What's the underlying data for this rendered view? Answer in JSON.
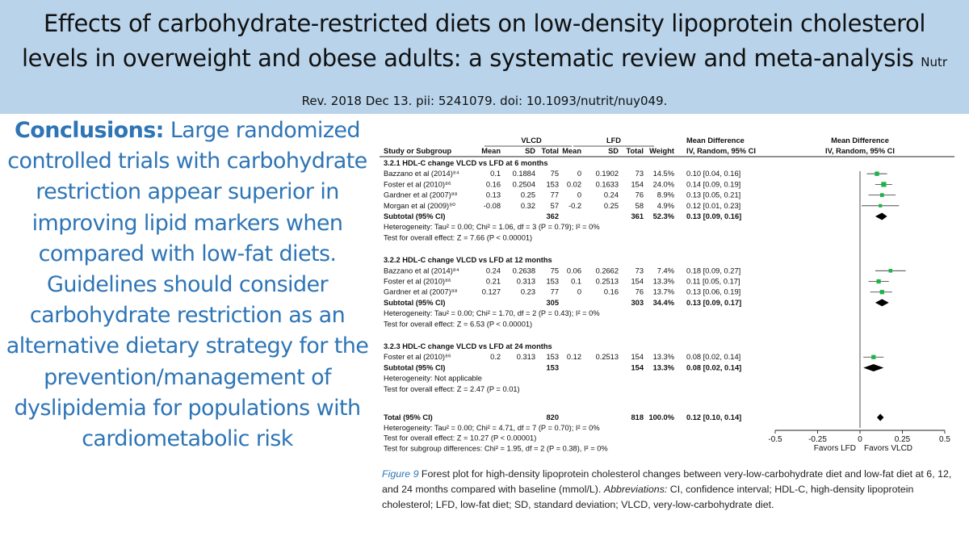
{
  "header": {
    "title": "Effects of carbohydrate-restricted diets on low-density lipoprotein cholesterol levels in overweight and obese adults: a systematic review and meta-analysis",
    "citation": "Nutr Rev. 2018 Dec 13. pii: 5241079. doi: 10.1093/nutrit/nuy049."
  },
  "conclusion": {
    "label": "Conclusions:",
    "text": "Large randomized controlled trials with carbohydrate restriction appear superior in improving lipid markers when compared with low-fat diets. Guidelines should consider carbohydrate restriction as an alternative dietary strategy for the prevention/management of dyslipidemia for populations with cardiometabolic risk"
  },
  "caption": {
    "label": "Figure 9",
    "text": "Forest plot for high-density lipoprotein cholesterol changes between very-low-carbohydrate diet and low-fat diet at 6, 12, and 24 months compared with baseline (mmol/L).",
    "abbr_label": "Abbreviations:",
    "abbr_text": "CI, confidence interval; HDL-C, high-density lipoprotein cholesterol; LFD, low-fat diet; SD, standard deviation; VLCD, very-low-carbohydrate diet."
  },
  "chart_data": {
    "type": "forest",
    "group_headers": [
      "VLCD",
      "LFD",
      "Mean Difference",
      "Mean Difference"
    ],
    "columns": [
      "Study or Subgroup",
      "Mean",
      "SD",
      "Total",
      "Mean",
      "SD",
      "Total",
      "Weight",
      "IV, Random, 95% CI",
      "IV, Random, 95% CI"
    ],
    "subgroups": [
      {
        "name": "3.2.1 HDL-C change VLCD vs LFD at 6 months",
        "studies": [
          {
            "study": "Bazzano et al (2014)⁸⁴",
            "vlcd_mean": "0.1",
            "vlcd_sd": "0.1884",
            "vlcd_total": "75",
            "lfd_mean": "0",
            "lfd_sd": "0.1902",
            "lfd_total": "73",
            "weight": "14.5%",
            "ci_text": "0.10 [0.04, 0.16]",
            "md": 0.1,
            "lo": 0.04,
            "hi": 0.16,
            "w": 14.5
          },
          {
            "study": "Foster et al (2010)⁸⁶",
            "vlcd_mean": "0.16",
            "vlcd_sd": "0.2504",
            "vlcd_total": "153",
            "lfd_mean": "0.02",
            "lfd_sd": "0.1633",
            "lfd_total": "154",
            "weight": "24.0%",
            "ci_text": "0.14 [0.09, 0.19]",
            "md": 0.14,
            "lo": 0.09,
            "hi": 0.19,
            "w": 24.0
          },
          {
            "study": "Gardner et al (2007)⁸⁸",
            "vlcd_mean": "0.13",
            "vlcd_sd": "0.25",
            "vlcd_total": "77",
            "lfd_mean": "0",
            "lfd_sd": "0.24",
            "lfd_total": "76",
            "weight": "8.9%",
            "ci_text": "0.13 [0.05, 0.21]",
            "md": 0.13,
            "lo": 0.05,
            "hi": 0.21,
            "w": 8.9
          },
          {
            "study": "Morgan et al (2009)⁹⁰",
            "vlcd_mean": "-0.08",
            "vlcd_sd": "0.32",
            "vlcd_total": "57",
            "lfd_mean": "-0.2",
            "lfd_sd": "0.25",
            "lfd_total": "58",
            "weight": "4.9%",
            "ci_text": "0.12 [0.01, 0.23]",
            "md": 0.12,
            "lo": 0.01,
            "hi": 0.23,
            "w": 4.9
          }
        ],
        "subtotal": {
          "label": "Subtotal (95% CI)",
          "vlcd_total": "362",
          "lfd_total": "361",
          "weight": "52.3%",
          "ci_text": "0.13 [0.09, 0.16]",
          "md": 0.13,
          "lo": 0.09,
          "hi": 0.16
        },
        "heterogeneity": "Heterogeneity: Tau² = 0.00; Chi² = 1.06, df = 3 (P = 0.79); I² = 0%",
        "overall_effect": "Test for overall effect: Z = 7.66 (P < 0.00001)"
      },
      {
        "name": "3.2.2 HDL-C change VLCD vs LFD at 12 months",
        "studies": [
          {
            "study": "Bazzano et al (2014)⁸⁴",
            "vlcd_mean": "0.24",
            "vlcd_sd": "0.2638",
            "vlcd_total": "75",
            "lfd_mean": "0.06",
            "lfd_sd": "0.2662",
            "lfd_total": "73",
            "weight": "7.4%",
            "ci_text": "0.18 [0.09, 0.27]",
            "md": 0.18,
            "lo": 0.09,
            "hi": 0.27,
            "w": 7.4
          },
          {
            "study": "Foster et al (2010)⁸⁶",
            "vlcd_mean": "0.21",
            "vlcd_sd": "0.313",
            "vlcd_total": "153",
            "lfd_mean": "0.1",
            "lfd_sd": "0.2513",
            "lfd_total": "154",
            "weight": "13.3%",
            "ci_text": "0.11 [0.05, 0.17]",
            "md": 0.11,
            "lo": 0.05,
            "hi": 0.17,
            "w": 13.3
          },
          {
            "study": "Gardner et al (2007)⁸⁸",
            "vlcd_mean": "0.127",
            "vlcd_sd": "0.23",
            "vlcd_total": "77",
            "lfd_mean": "0",
            "lfd_sd": "0.16",
            "lfd_total": "76",
            "weight": "13.7%",
            "ci_text": "0.13 [0.06, 0.19]",
            "md": 0.13,
            "lo": 0.06,
            "hi": 0.19,
            "w": 13.7
          }
        ],
        "subtotal": {
          "label": "Subtotal (95% CI)",
          "vlcd_total": "305",
          "lfd_total": "303",
          "weight": "34.4%",
          "ci_text": "0.13 [0.09, 0.17]",
          "md": 0.13,
          "lo": 0.09,
          "hi": 0.17
        },
        "heterogeneity": "Heterogeneity: Tau² = 0.00; Chi² = 1.70, df = 2 (P = 0.43); I² = 0%",
        "overall_effect": "Test for overall effect: Z = 6.53 (P < 0.00001)"
      },
      {
        "name": "3.2.3 HDL-C change VLCD vs LFD at 24 months",
        "studies": [
          {
            "study": "Foster et al (2010)⁸⁶",
            "vlcd_mean": "0.2",
            "vlcd_sd": "0.313",
            "vlcd_total": "153",
            "lfd_mean": "0.12",
            "lfd_sd": "0.2513",
            "lfd_total": "154",
            "weight": "13.3%",
            "ci_text": "0.08 [0.02, 0.14]",
            "md": 0.08,
            "lo": 0.02,
            "hi": 0.14,
            "w": 13.3
          }
        ],
        "subtotal": {
          "label": "Subtotal (95% CI)",
          "vlcd_total": "153",
          "lfd_total": "154",
          "weight": "13.3%",
          "ci_text": "0.08 [0.02, 0.14]",
          "md": 0.08,
          "lo": 0.02,
          "hi": 0.14
        },
        "heterogeneity": "Heterogeneity: Not applicable",
        "overall_effect": "Test for overall effect: Z = 2.47 (P = 0.01)"
      }
    ],
    "total": {
      "label": "Total (95% CI)",
      "vlcd_total": "820",
      "lfd_total": "818",
      "weight": "100.0%",
      "ci_text": "0.12 [0.10, 0.14]",
      "md": 0.12,
      "lo": 0.1,
      "hi": 0.14
    },
    "total_notes": [
      "Heterogeneity: Tau² = 0.00; Chi² = 4.71, df = 7 (P = 0.70); I² = 0%",
      "Test for overall effect: Z = 10.27 (P < 0.00001)",
      "Test for subgroup differences: Chi² = 1.95, df = 2 (P = 0.38), I² = 0%"
    ],
    "x_range": [
      -0.5,
      0.5
    ],
    "x_ticks": [
      -0.5,
      -0.25,
      0,
      0.25,
      0.5
    ],
    "x_tick_labels": [
      "-0.5",
      "-0.25",
      "0",
      "0.25",
      "0.5"
    ],
    "x_direction_labels": [
      "Favors LFD",
      "Favors VLCD"
    ],
    "marker_color": "#1db34a"
  }
}
